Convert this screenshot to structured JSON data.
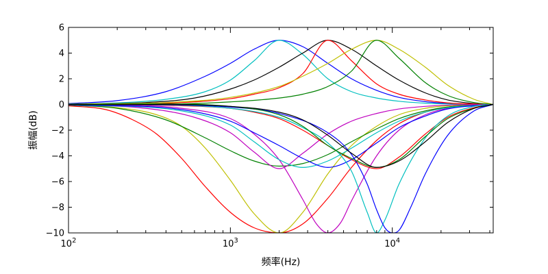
{
  "chart_data": {
    "type": "line",
    "xlabel": "频率(Hz)",
    "ylabel": "振幅(dB)",
    "x_scale": "log",
    "xlim": [
      100,
      42000
    ],
    "ylim": [
      -10,
      6
    ],
    "y_ticks": [
      -10,
      -8,
      -6,
      -4,
      -2,
      0,
      2,
      4,
      6
    ],
    "x_ticks": [
      {
        "value": 100,
        "base": "10",
        "exp": "2"
      },
      {
        "value": 1000,
        "base": "10",
        "exp": "3"
      },
      {
        "value": 10000,
        "base": "10",
        "exp": "4"
      }
    ],
    "grid": false,
    "legend": "none",
    "series": [
      {
        "color": "#0000ff",
        "points": [
          [
            100,
            0.07
          ],
          [
            200,
            0.3
          ],
          [
            400,
            1.0
          ],
          [
            700,
            2.2
          ],
          [
            1000,
            3.2
          ],
          [
            1400,
            4.3
          ],
          [
            2000,
            5.0
          ],
          [
            2800,
            4.5
          ],
          [
            4000,
            3.2
          ],
          [
            5600,
            2.0
          ],
          [
            8000,
            1.1
          ],
          [
            11000,
            0.55
          ],
          [
            16000,
            0.22
          ],
          [
            22000,
            0.08
          ],
          [
            32000,
            0.02
          ],
          [
            42000,
            0.0
          ]
        ]
      },
      {
        "color": "#00bfbf",
        "points": [
          [
            100,
            0.03
          ],
          [
            200,
            0.12
          ],
          [
            400,
            0.4
          ],
          [
            700,
            1.0
          ],
          [
            1000,
            1.9
          ],
          [
            1400,
            3.4
          ],
          [
            2000,
            5.0
          ],
          [
            2800,
            3.9
          ],
          [
            4000,
            2.0
          ],
          [
            5600,
            1.0
          ],
          [
            8000,
            0.5
          ],
          [
            11000,
            0.25
          ],
          [
            16000,
            0.1
          ],
          [
            22000,
            0.04
          ],
          [
            42000,
            0.0
          ]
        ]
      },
      {
        "color": "#000000",
        "points": [
          [
            100,
            0.03
          ],
          [
            300,
            0.15
          ],
          [
            600,
            0.5
          ],
          [
            1000,
            1.2
          ],
          [
            1400,
            1.9
          ],
          [
            2000,
            2.9
          ],
          [
            2800,
            4.0
          ],
          [
            4000,
            5.0
          ],
          [
            5600,
            4.3
          ],
          [
            8000,
            3.0
          ],
          [
            11000,
            1.9
          ],
          [
            16000,
            0.9
          ],
          [
            22000,
            0.35
          ],
          [
            32000,
            0.07
          ],
          [
            42000,
            0.0
          ]
        ]
      },
      {
        "color": "#ff0000",
        "points": [
          [
            100,
            0.02
          ],
          [
            400,
            0.1
          ],
          [
            1000,
            0.45
          ],
          [
            1400,
            0.8
          ],
          [
            2000,
            1.3
          ],
          [
            2800,
            2.4
          ],
          [
            4000,
            5.0
          ],
          [
            5600,
            3.4
          ],
          [
            8000,
            1.6
          ],
          [
            11000,
            0.8
          ],
          [
            16000,
            0.35
          ],
          [
            22000,
            0.12
          ],
          [
            42000,
            0.0
          ]
        ]
      },
      {
        "color": "#bfbf00",
        "points": [
          [
            100,
            0.02
          ],
          [
            400,
            0.15
          ],
          [
            1000,
            0.55
          ],
          [
            2000,
            1.4
          ],
          [
            2800,
            2.2
          ],
          [
            4000,
            3.2
          ],
          [
            5600,
            4.3
          ],
          [
            8000,
            5.0
          ],
          [
            11000,
            4.3
          ],
          [
            16000,
            2.9
          ],
          [
            22000,
            1.5
          ],
          [
            32000,
            0.4
          ],
          [
            42000,
            0.0
          ]
        ]
      },
      {
        "color": "#008000",
        "points": [
          [
            100,
            0.01
          ],
          [
            500,
            0.05
          ],
          [
            1000,
            0.2
          ],
          [
            2000,
            0.5
          ],
          [
            2800,
            0.8
          ],
          [
            4000,
            1.4
          ],
          [
            5600,
            2.6
          ],
          [
            8000,
            5.0
          ],
          [
            11000,
            3.6
          ],
          [
            16000,
            1.7
          ],
          [
            22000,
            0.7
          ],
          [
            32000,
            0.15
          ],
          [
            42000,
            0.0
          ]
        ]
      },
      {
        "color": "#ff0000",
        "points": [
          [
            100,
            -0.1
          ],
          [
            170,
            -0.4
          ],
          [
            250,
            -1.2
          ],
          [
            350,
            -2.3
          ],
          [
            500,
            -4.2
          ],
          [
            700,
            -6.4
          ],
          [
            1000,
            -8.4
          ],
          [
            1400,
            -9.6
          ],
          [
            2000,
            -10.0
          ],
          [
            2800,
            -9.3
          ],
          [
            4000,
            -7.3
          ],
          [
            5600,
            -4.9
          ],
          [
            8000,
            -2.8
          ],
          [
            11000,
            -1.5
          ],
          [
            16000,
            -0.6
          ],
          [
            22000,
            -0.2
          ],
          [
            42000,
            0.0
          ]
        ]
      },
      {
        "color": "#bfbf00",
        "points": [
          [
            100,
            -0.05
          ],
          [
            200,
            -0.25
          ],
          [
            350,
            -0.8
          ],
          [
            500,
            -1.7
          ],
          [
            700,
            -3.4
          ],
          [
            1000,
            -5.9
          ],
          [
            1400,
            -8.5
          ],
          [
            2000,
            -10.0
          ],
          [
            2800,
            -8.4
          ],
          [
            4000,
            -5.4
          ],
          [
            5600,
            -3.2
          ],
          [
            8000,
            -1.7
          ],
          [
            11000,
            -0.8
          ],
          [
            16000,
            -0.3
          ],
          [
            22000,
            -0.1
          ],
          [
            42000,
            0.0
          ]
        ]
      },
      {
        "color": "#008000",
        "points": [
          [
            100,
            -0.05
          ],
          [
            200,
            -0.3
          ],
          [
            400,
            -1.2
          ],
          [
            700,
            -2.6
          ],
          [
            1000,
            -3.6
          ],
          [
            1400,
            -4.4
          ],
          [
            2000,
            -4.8
          ],
          [
            2800,
            -4.6
          ],
          [
            4000,
            -3.9
          ],
          [
            5600,
            -2.9
          ],
          [
            8000,
            -1.9
          ],
          [
            11000,
            -1.1
          ],
          [
            16000,
            -0.5
          ],
          [
            22000,
            -0.2
          ],
          [
            42000,
            0.0
          ]
        ]
      },
      {
        "color": "#bf00bf",
        "points": [
          [
            100,
            -0.03
          ],
          [
            300,
            -0.3
          ],
          [
            600,
            -1.0
          ],
          [
            1000,
            -2.2
          ],
          [
            1400,
            -3.7
          ],
          [
            2000,
            -5.0
          ],
          [
            2800,
            -3.8
          ],
          [
            4000,
            -2.3
          ],
          [
            5600,
            -1.3
          ],
          [
            8000,
            -0.7
          ],
          [
            11000,
            -0.35
          ],
          [
            16000,
            -0.15
          ],
          [
            22000,
            -0.05
          ],
          [
            42000,
            0.0
          ]
        ]
      },
      {
        "color": "#bf00bf",
        "points": [
          [
            100,
            -0.02
          ],
          [
            500,
            -0.3
          ],
          [
            1000,
            -1.1
          ],
          [
            1400,
            -2.3
          ],
          [
            2000,
            -4.3
          ],
          [
            2800,
            -7.4
          ],
          [
            3400,
            -9.3
          ],
          [
            4000,
            -10.0
          ],
          [
            4800,
            -9.2
          ],
          [
            5600,
            -7.5
          ],
          [
            8000,
            -4.0
          ],
          [
            11000,
            -2.0
          ],
          [
            16000,
            -0.8
          ],
          [
            22000,
            -0.3
          ],
          [
            42000,
            0.0
          ]
        ]
      },
      {
        "color": "#ff0000",
        "points": [
          [
            100,
            -0.01
          ],
          [
            500,
            -0.1
          ],
          [
            1000,
            -0.3
          ],
          [
            1400,
            -0.6
          ],
          [
            2000,
            -1.1
          ],
          [
            2800,
            -2.0
          ],
          [
            4000,
            -3.2
          ],
          [
            5600,
            -4.3
          ],
          [
            8000,
            -5.0
          ],
          [
            11000,
            -4.1
          ],
          [
            16000,
            -2.3
          ],
          [
            22000,
            -1.0
          ],
          [
            32000,
            -0.25
          ],
          [
            42000,
            0.0
          ]
        ]
      },
      {
        "color": "#00bfbf",
        "points": [
          [
            100,
            -0.03
          ],
          [
            500,
            -0.5
          ],
          [
            1000,
            -1.6
          ],
          [
            1400,
            -2.9
          ],
          [
            2000,
            -4.3
          ],
          [
            2800,
            -4.9
          ],
          [
            4000,
            -4.4
          ],
          [
            5600,
            -3.4
          ],
          [
            8000,
            -2.2
          ],
          [
            11000,
            -1.3
          ],
          [
            16000,
            -0.6
          ],
          [
            22000,
            -0.25
          ],
          [
            42000,
            0.0
          ]
        ]
      },
      {
        "color": "#0000ff",
        "points": [
          [
            100,
            -0.03
          ],
          [
            500,
            -0.4
          ],
          [
            1000,
            -1.3
          ],
          [
            1400,
            -2.2
          ],
          [
            2000,
            -3.2
          ],
          [
            2800,
            -4.2
          ],
          [
            4000,
            -4.9
          ],
          [
            5600,
            -4.3
          ],
          [
            8000,
            -3.0
          ],
          [
            11000,
            -1.8
          ],
          [
            16000,
            -0.9
          ],
          [
            22000,
            -0.35
          ],
          [
            42000,
            0.0
          ]
        ]
      },
      {
        "color": "#00bfbf",
        "points": [
          [
            100,
            -0.01
          ],
          [
            1000,
            -0.3
          ],
          [
            2000,
            -1.0
          ],
          [
            2800,
            -1.8
          ],
          [
            4000,
            -3.0
          ],
          [
            5600,
            -5.2
          ],
          [
            7000,
            -8.4
          ],
          [
            8000,
            -10.0
          ],
          [
            9000,
            -9.0
          ],
          [
            11000,
            -6.2
          ],
          [
            16000,
            -2.6
          ],
          [
            22000,
            -0.9
          ],
          [
            32000,
            -0.15
          ],
          [
            42000,
            0.0
          ]
        ]
      },
      {
        "color": "#0000ff",
        "points": [
          [
            100,
            -0.01
          ],
          [
            1000,
            -0.2
          ],
          [
            2000,
            -0.7
          ],
          [
            4000,
            -2.2
          ],
          [
            5600,
            -3.9
          ],
          [
            7000,
            -6.2
          ],
          [
            8000,
            -8.2
          ],
          [
            9000,
            -9.6
          ],
          [
            10000,
            -10.0
          ],
          [
            11000,
            -9.8
          ],
          [
            13000,
            -8.0
          ],
          [
            16000,
            -5.4
          ],
          [
            22000,
            -2.4
          ],
          [
            32000,
            -0.5
          ],
          [
            42000,
            0.0
          ]
        ]
      },
      {
        "color": "#008000",
        "points": [
          [
            100,
            -0.01
          ],
          [
            1000,
            -0.15
          ],
          [
            2000,
            -0.8
          ],
          [
            2800,
            -1.7
          ],
          [
            4000,
            -3.2
          ],
          [
            5600,
            -4.2
          ],
          [
            8000,
            -4.9
          ],
          [
            11000,
            -4.3
          ],
          [
            16000,
            -2.5
          ],
          [
            22000,
            -1.1
          ],
          [
            32000,
            -0.3
          ],
          [
            42000,
            0.0
          ]
        ]
      },
      {
        "color": "#000000",
        "points": [
          [
            100,
            -0.01
          ],
          [
            1000,
            -0.15
          ],
          [
            2000,
            -0.6
          ],
          [
            2800,
            -1.2
          ],
          [
            4000,
            -2.4
          ],
          [
            5600,
            -3.8
          ],
          [
            8000,
            -4.9
          ],
          [
            11000,
            -4.4
          ],
          [
            16000,
            -2.9
          ],
          [
            22000,
            -1.4
          ],
          [
            32000,
            -0.3
          ],
          [
            42000,
            0.0
          ]
        ]
      }
    ]
  }
}
